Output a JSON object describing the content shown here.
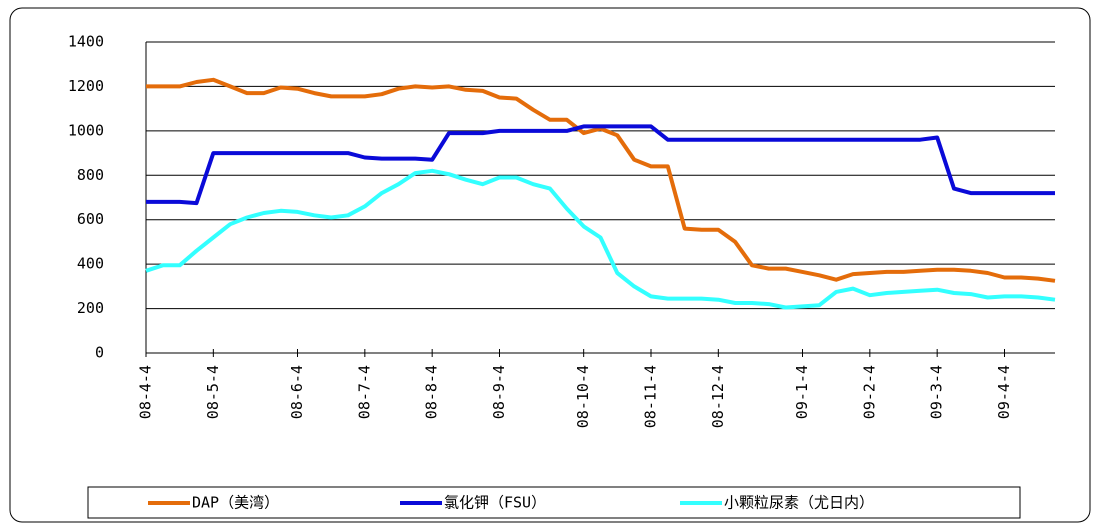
{
  "chart_data": {
    "type": "line",
    "categories": [
      "08-4-4",
      null,
      null,
      null,
      "08-5-4",
      null,
      null,
      null,
      null,
      "08-6-4",
      null,
      null,
      null,
      "08-7-4",
      null,
      null,
      null,
      "08-8-4",
      null,
      null,
      null,
      "08-9-4",
      null,
      null,
      null,
      null,
      "08-10-4",
      null,
      null,
      null,
      "08-11-4",
      null,
      null,
      null,
      "08-12-4",
      null,
      null,
      null,
      null,
      "09-1-4",
      null,
      null,
      null,
      "09-2-4",
      null,
      null,
      null,
      "09-3-4",
      null,
      null,
      null,
      "09-4-4",
      null,
      null,
      null
    ],
    "series": [
      {
        "name": "DAP（美湾）",
        "color": "#e46c0a",
        "values": [
          1200,
          1200,
          1200,
          1220,
          1230,
          1200,
          1170,
          1170,
          1195,
          1190,
          1170,
          1155,
          1155,
          1155,
          1165,
          1190,
          1200,
          1195,
          1200,
          1185,
          1180,
          1150,
          1145,
          1095,
          1050,
          1050,
          990,
          1010,
          980,
          870,
          840,
          840,
          560,
          555,
          555,
          500,
          395,
          380,
          380,
          365,
          350,
          330,
          355,
          360,
          365,
          365,
          370,
          375,
          375,
          370,
          360,
          340,
          340,
          335,
          325
        ]
      },
      {
        "name": "氯化钾（FSU）",
        "color": "#0a0ad8",
        "values": [
          680,
          680,
          680,
          675,
          900,
          900,
          900,
          900,
          900,
          900,
          900,
          900,
          900,
          880,
          875,
          875,
          875,
          870,
          990,
          990,
          990,
          1000,
          1000,
          1000,
          1000,
          1000,
          1020,
          1020,
          1020,
          1020,
          1020,
          960,
          960,
          960,
          960,
          960,
          960,
          960,
          960,
          960,
          960,
          960,
          960,
          960,
          960,
          960,
          960,
          970,
          740,
          720,
          720,
          720,
          720,
          720,
          720
        ]
      },
      {
        "name": "小颗粒尿素（尤日内）",
        "color": "#33ffff",
        "values": [
          370,
          395,
          395,
          460,
          520,
          580,
          610,
          630,
          640,
          635,
          620,
          610,
          620,
          660,
          720,
          760,
          810,
          820,
          805,
          780,
          760,
          790,
          790,
          760,
          740,
          650,
          570,
          520,
          360,
          300,
          255,
          245,
          245,
          245,
          240,
          225,
          225,
          220,
          205,
          210,
          215,
          275,
          290,
          260,
          270,
          275,
          280,
          285,
          270,
          265,
          250,
          255,
          255,
          250,
          240
        ]
      }
    ],
    "ylim": [
      0,
      1400
    ],
    "yticks": [
      0,
      200,
      400,
      600,
      800,
      1000,
      1200,
      1400
    ],
    "grid": true
  }
}
